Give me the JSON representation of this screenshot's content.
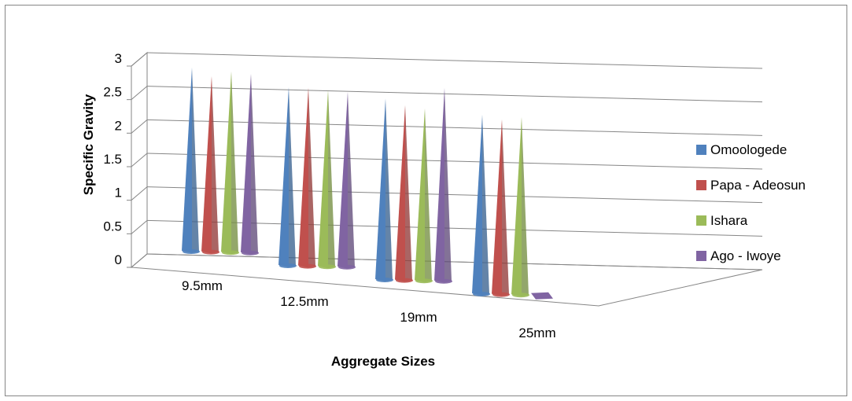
{
  "chart_data": {
    "type": "bar",
    "style": "3d-cone",
    "title": "",
    "xlabel": "Aggregate Sizes",
    "ylabel": "Specific Gravity",
    "ylim": [
      0,
      3
    ],
    "yticks": [
      "0",
      "0.5",
      "1",
      "1.5",
      "2",
      "2.5",
      "3"
    ],
    "categories": [
      "9.5mm",
      "12.5mm",
      "19mm",
      "25mm"
    ],
    "series": [
      {
        "name": "Omoologede",
        "color": "#4F81BD",
        "values": [
          2.73,
          2.65,
          2.69,
          2.66
        ]
      },
      {
        "name": "Papa - Adeosun",
        "color": "#C0504D",
        "values": [
          2.61,
          2.65,
          2.6,
          2.6
        ]
      },
      {
        "name": "Ishara",
        "color": "#9BBB59",
        "values": [
          2.69,
          2.62,
          2.56,
          2.64
        ]
      },
      {
        "name": "Ago - Iwoye",
        "color": "#8064A2",
        "values": [
          2.66,
          2.6,
          2.87,
          0
        ]
      }
    ],
    "grid": true,
    "legend_position": "right"
  }
}
